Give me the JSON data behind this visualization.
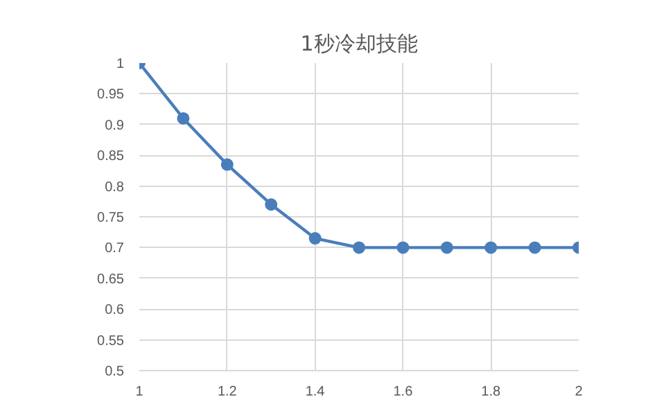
{
  "chart_data": {
    "type": "line",
    "title": "1秒冷却技能",
    "x": [
      1,
      1.1,
      1.2,
      1.3,
      1.4,
      1.5,
      1.6,
      1.7,
      1.8,
      1.9,
      2
    ],
    "series": [
      {
        "color": "#4a7ebb",
        "values": [
          1,
          0.91,
          0.835,
          0.77,
          0.715,
          0.7,
          0.7,
          0.7,
          0.7,
          0.7,
          0.7
        ]
      }
    ],
    "xlim": [
      1,
      2
    ],
    "xticks": [
      1,
      1.2,
      1.4,
      1.6,
      1.8,
      2
    ],
    "ylim": [
      0.5,
      1
    ],
    "yticks": [
      0.5,
      0.55,
      0.6,
      0.65,
      0.7,
      0.75,
      0.8,
      0.85,
      0.9,
      0.95,
      1
    ],
    "grid": true,
    "marker": "circle",
    "line_style": "solid"
  }
}
